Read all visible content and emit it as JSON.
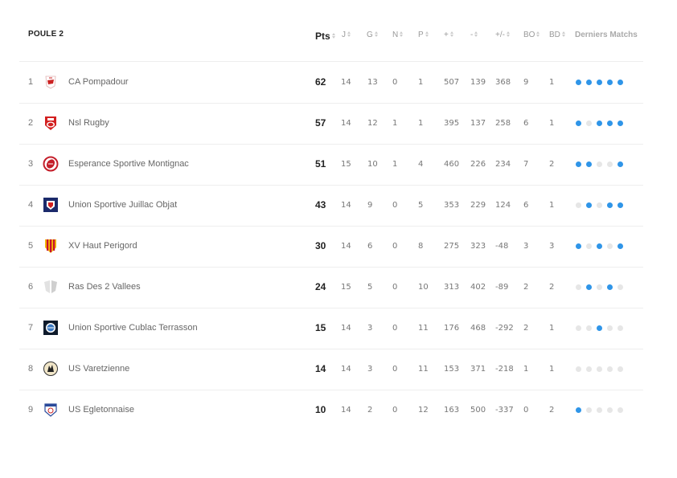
{
  "title": "POULE 2",
  "headers": {
    "pts": "Pts",
    "j": "J",
    "g": "G",
    "n": "N",
    "p": "P",
    "plus": "+",
    "minus": "-",
    "diff": "+/-",
    "bo": "BO",
    "bd": "BD",
    "last": "Derniers Matchs"
  },
  "colors": {
    "win_dot": "#2f95e8",
    "other_dot": "#e6e6e6"
  },
  "rows": [
    {
      "rank": "1",
      "team": "CA Pompadour",
      "logo": "ca-pompadour-logo",
      "pts": "62",
      "j": "14",
      "g": "13",
      "n": "0",
      "p": "1",
      "plus": "507",
      "minus": "139",
      "diff": "368",
      "bo": "9",
      "bd": "1",
      "form": [
        "w",
        "w",
        "w",
        "w",
        "w"
      ]
    },
    {
      "rank": "2",
      "team": "Nsl Rugby",
      "logo": "nsl-rugby-logo",
      "pts": "57",
      "j": "14",
      "g": "12",
      "n": "1",
      "p": "1",
      "plus": "395",
      "minus": "137",
      "diff": "258",
      "bo": "6",
      "bd": "1",
      "form": [
        "w",
        "l",
        "w",
        "w",
        "w"
      ]
    },
    {
      "rank": "3",
      "team": "Esperance Sportive Montignac",
      "logo": "montignac-logo",
      "pts": "51",
      "j": "15",
      "g": "10",
      "n": "1",
      "p": "4",
      "plus": "460",
      "minus": "226",
      "diff": "234",
      "bo": "7",
      "bd": "2",
      "form": [
        "w",
        "w",
        "l",
        "l",
        "w"
      ]
    },
    {
      "rank": "4",
      "team": "Union Sportive Juillac Objat",
      "logo": "juillac-objat-logo",
      "pts": "43",
      "j": "14",
      "g": "9",
      "n": "0",
      "p": "5",
      "plus": "353",
      "minus": "229",
      "diff": "124",
      "bo": "6",
      "bd": "1",
      "form": [
        "l",
        "w",
        "l",
        "w",
        "w"
      ]
    },
    {
      "rank": "5",
      "team": "XV Haut Perigord",
      "logo": "haut-perigord-logo",
      "pts": "30",
      "j": "14",
      "g": "6",
      "n": "0",
      "p": "8",
      "plus": "275",
      "minus": "323",
      "diff": "-48",
      "bo": "3",
      "bd": "3",
      "form": [
        "w",
        "l",
        "w",
        "l",
        "w"
      ]
    },
    {
      "rank": "6",
      "team": "Ras Des 2 Vallees",
      "logo": "placeholder-shield-logo",
      "pts": "24",
      "j": "15",
      "g": "5",
      "n": "0",
      "p": "10",
      "plus": "313",
      "minus": "402",
      "diff": "-89",
      "bo": "2",
      "bd": "2",
      "form": [
        "l",
        "w",
        "l",
        "w",
        "l"
      ]
    },
    {
      "rank": "7",
      "team": "Union Sportive Cublac Terrasson",
      "logo": "cublac-terrasson-logo",
      "pts": "15",
      "j": "14",
      "g": "3",
      "n": "0",
      "p": "11",
      "plus": "176",
      "minus": "468",
      "diff": "-292",
      "bo": "2",
      "bd": "1",
      "form": [
        "l",
        "l",
        "w",
        "l",
        "l"
      ]
    },
    {
      "rank": "8",
      "team": "US Varetzienne",
      "logo": "varetzienne-logo",
      "pts": "14",
      "j": "14",
      "g": "3",
      "n": "0",
      "p": "11",
      "plus": "153",
      "minus": "371",
      "diff": "-218",
      "bo": "1",
      "bd": "1",
      "form": [
        "l",
        "l",
        "l",
        "l",
        "l"
      ]
    },
    {
      "rank": "9",
      "team": "US Egletonnaise",
      "logo": "egletonnaise-logo",
      "pts": "10",
      "j": "14",
      "g": "2",
      "n": "0",
      "p": "12",
      "plus": "163",
      "minus": "500",
      "diff": "-337",
      "bo": "0",
      "bd": "2",
      "form": [
        "w",
        "l",
        "l",
        "l",
        "l"
      ]
    }
  ]
}
